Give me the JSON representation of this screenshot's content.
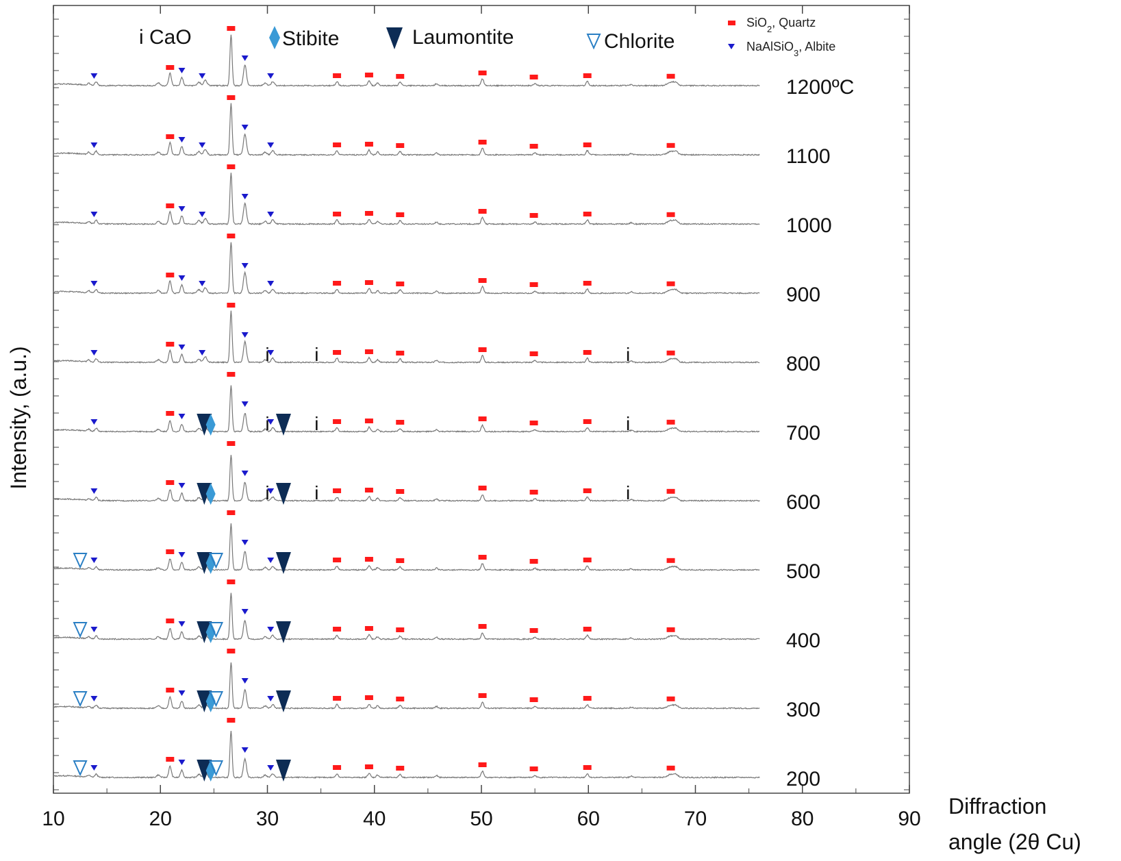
{
  "chart_data": {
    "type": "line",
    "title": "",
    "xlabel_line1": "Diffraction",
    "xlabel_line2": "angle (2θ   Cu)",
    "ylabel": "Intensity, (a.u.)",
    "xlim": [
      10,
      90
    ],
    "xticks": [
      10,
      20,
      30,
      40,
      50,
      60,
      70,
      80,
      90
    ],
    "xtick_labels": [
      "10",
      "20",
      "30",
      "40",
      "50",
      "60",
      "70",
      "80",
      "90"
    ],
    "temperatures": [
      200,
      300,
      400,
      500,
      600,
      700,
      800,
      900,
      1000,
      1100,
      1200
    ],
    "temperature_labels": [
      "200",
      "300",
      "400",
      "500",
      "600",
      "700",
      "800",
      "900",
      "1000",
      "1100",
      "1200ºC"
    ],
    "base_peaks": [
      {
        "x": 13.3,
        "h": 3,
        "w": 0.12
      },
      {
        "x": 14.0,
        "h": 5,
        "w": 0.12
      },
      {
        "x": 19.8,
        "h": 4,
        "w": 0.15
      },
      {
        "x": 20.9,
        "h": 18,
        "w": 0.12
      },
      {
        "x": 22.0,
        "h": 12,
        "w": 0.12
      },
      {
        "x": 23.6,
        "h": 5,
        "w": 0.15
      },
      {
        "x": 24.2,
        "h": 8,
        "w": 0.15
      },
      {
        "x": 26.6,
        "h": 75,
        "w": 0.1
      },
      {
        "x": 27.9,
        "h": 30,
        "w": 0.14
      },
      {
        "x": 29.8,
        "h": 4,
        "w": 0.14
      },
      {
        "x": 30.5,
        "h": 6,
        "w": 0.14
      },
      {
        "x": 36.5,
        "h": 6,
        "w": 0.12
      },
      {
        "x": 39.5,
        "h": 7,
        "w": 0.12
      },
      {
        "x": 40.3,
        "h": 4,
        "w": 0.12
      },
      {
        "x": 42.4,
        "h": 5,
        "w": 0.12
      },
      {
        "x": 45.8,
        "h": 3,
        "w": 0.12
      },
      {
        "x": 50.1,
        "h": 10,
        "w": 0.12
      },
      {
        "x": 55.0,
        "h": 3,
        "w": 0.12
      },
      {
        "x": 59.9,
        "h": 6,
        "w": 0.12
      },
      {
        "x": 64.0,
        "h": 2,
        "w": 0.12
      },
      {
        "x": 67.7,
        "h": 5,
        "w": 0.3
      },
      {
        "x": 68.2,
        "h": 4,
        "w": 0.2
      }
    ],
    "markers": {
      "quartz": [
        20.9,
        26.6,
        36.5,
        39.5,
        42.4,
        50.1,
        54.9,
        59.9,
        67.7
      ],
      "albite": [
        13.8,
        22.0,
        23.9,
        27.9,
        30.3
      ],
      "laumontite": [
        24.1,
        31.5
      ],
      "stibite": [
        24.7
      ],
      "chlorite": [
        12.5,
        25.2
      ],
      "cao": [
        30.0,
        34.6,
        63.7
      ]
    },
    "phase_presence": {
      "laumontite": [
        200,
        300,
        400,
        500,
        600,
        700
      ],
      "stibite": [
        200,
        300,
        400,
        500,
        600,
        700
      ],
      "chlorite": [
        200,
        300,
        400,
        500
      ],
      "cao": [
        600,
        700,
        800
      ]
    },
    "legend": {
      "cao": {
        "symbol": "i",
        "label": "CaO"
      },
      "stibite": {
        "label": "Stibite",
        "color": "#3a9ad6"
      },
      "laumontite": {
        "label": "Laumontite",
        "color": "#0d2c55"
      },
      "chlorite": {
        "label": "Chlorite",
        "color": "#2a7fc4"
      },
      "quartz": {
        "label": "SiO",
        "sub": "2",
        "suffix": ", Quartz",
        "color": "#ff1a1a"
      },
      "albite": {
        "label": "NaAlSiO",
        "sub": "3",
        "suffix": ", Albite",
        "color": "#1a1acc"
      }
    },
    "cao_symbol": "i",
    "line_color": "#777777"
  }
}
